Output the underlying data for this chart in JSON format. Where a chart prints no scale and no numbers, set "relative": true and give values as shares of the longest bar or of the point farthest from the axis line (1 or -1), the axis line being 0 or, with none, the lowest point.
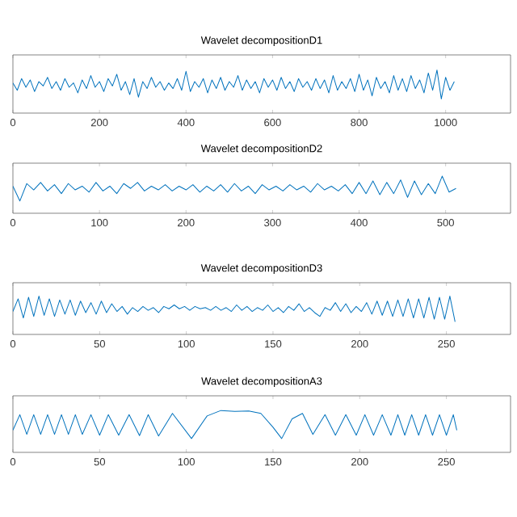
{
  "chart_data": [
    {
      "type": "line",
      "title": "Wavelet decompositionD1",
      "relative": true,
      "color": "#0072bd",
      "xlim": [
        0,
        1150
      ],
      "xticks": [
        0,
        200,
        400,
        600,
        800,
        1000
      ],
      "x": [
        0,
        10,
        20,
        30,
        40,
        50,
        60,
        70,
        80,
        90,
        100,
        110,
        120,
        130,
        140,
        150,
        160,
        170,
        180,
        190,
        200,
        210,
        220,
        230,
        240,
        250,
        260,
        270,
        280,
        290,
        300,
        310,
        320,
        330,
        340,
        350,
        360,
        370,
        380,
        390,
        400,
        410,
        420,
        430,
        440,
        450,
        460,
        470,
        480,
        490,
        500,
        510,
        520,
        530,
        540,
        550,
        560,
        570,
        580,
        590,
        600,
        610,
        620,
        630,
        640,
        650,
        660,
        670,
        680,
        690,
        700,
        710,
        720,
        730,
        740,
        750,
        760,
        770,
        780,
        790,
        800,
        810,
        820,
        830,
        840,
        850,
        860,
        870,
        880,
        890,
        900,
        910,
        920,
        930,
        940,
        950,
        960,
        970,
        980,
        990,
        1000,
        1010,
        1020
      ],
      "values": [
        0.7,
        0.53,
        0.8,
        0.6,
        0.77,
        0.5,
        0.73,
        0.63,
        0.83,
        0.57,
        0.73,
        0.53,
        0.8,
        0.6,
        0.7,
        0.47,
        0.77,
        0.57,
        0.87,
        0.6,
        0.73,
        0.5,
        0.8,
        0.63,
        0.9,
        0.53,
        0.73,
        0.43,
        0.8,
        0.37,
        0.73,
        0.57,
        0.83,
        0.6,
        0.73,
        0.53,
        0.7,
        0.57,
        0.8,
        0.53,
        0.97,
        0.5,
        0.73,
        0.6,
        0.8,
        0.47,
        0.77,
        0.57,
        0.83,
        0.53,
        0.73,
        0.6,
        0.87,
        0.53,
        0.77,
        0.57,
        0.73,
        0.47,
        0.8,
        0.6,
        0.77,
        0.53,
        0.83,
        0.57,
        0.73,
        0.5,
        0.8,
        0.6,
        0.73,
        0.53,
        0.8,
        0.57,
        0.77,
        0.47,
        0.87,
        0.53,
        0.73,
        0.57,
        0.8,
        0.5,
        0.9,
        0.53,
        0.77,
        0.4,
        0.83,
        0.57,
        0.73,
        0.47,
        0.87,
        0.53,
        0.8,
        0.5,
        0.87,
        0.57,
        0.77,
        0.47,
        0.93,
        0.53,
        1.0,
        0.33,
        0.83,
        0.53,
        0.73
      ]
    },
    {
      "type": "line",
      "title": "Wavelet decompositionD2",
      "relative": true,
      "color": "#0072bd",
      "xlim": [
        0,
        575
      ],
      "xticks": [
        0,
        100,
        200,
        300,
        400,
        500
      ],
      "x": [
        0,
        8,
        16,
        24,
        32,
        40,
        48,
        56,
        64,
        72,
        80,
        88,
        96,
        104,
        112,
        120,
        128,
        136,
        144,
        152,
        160,
        168,
        176,
        184,
        192,
        200,
        208,
        216,
        224,
        232,
        240,
        248,
        256,
        264,
        272,
        280,
        288,
        296,
        304,
        312,
        320,
        328,
        336,
        344,
        352,
        360,
        368,
        376,
        384,
        392,
        400,
        408,
        416,
        424,
        432,
        440,
        448,
        456,
        464,
        472,
        480,
        488,
        496,
        504,
        512
      ],
      "values": [
        0.73,
        0.33,
        0.8,
        0.63,
        0.83,
        0.6,
        0.77,
        0.53,
        0.8,
        0.63,
        0.73,
        0.57,
        0.83,
        0.6,
        0.73,
        0.53,
        0.8,
        0.67,
        0.83,
        0.6,
        0.73,
        0.63,
        0.77,
        0.6,
        0.73,
        0.63,
        0.77,
        0.57,
        0.73,
        0.6,
        0.77,
        0.57,
        0.8,
        0.6,
        0.73,
        0.53,
        0.77,
        0.63,
        0.73,
        0.6,
        0.77,
        0.63,
        0.73,
        0.57,
        0.8,
        0.63,
        0.73,
        0.6,
        0.77,
        0.53,
        0.83,
        0.53,
        0.87,
        0.5,
        0.83,
        0.53,
        0.9,
        0.43,
        0.87,
        0.5,
        0.8,
        0.53,
        1.0,
        0.57,
        0.67
      ]
    },
    {
      "type": "line",
      "title": "Wavelet decompositionD3",
      "relative": true,
      "color": "#0072bd",
      "xlim": [
        0,
        287
      ],
      "xticks": [
        0,
        50,
        100,
        150,
        200,
        250
      ],
      "x": [
        0,
        3,
        6,
        9,
        12,
        15,
        18,
        21,
        24,
        27,
        30,
        33,
        36,
        39,
        42,
        45,
        48,
        51,
        54,
        57,
        60,
        63,
        66,
        69,
        72,
        75,
        78,
        81,
        84,
        87,
        90,
        93,
        96,
        99,
        102,
        105,
        108,
        111,
        114,
        117,
        120,
        123,
        126,
        129,
        132,
        135,
        138,
        141,
        144,
        147,
        150,
        153,
        156,
        159,
        162,
        165,
        168,
        171,
        174,
        177,
        180,
        183,
        186,
        189,
        192,
        195,
        198,
        201,
        204,
        207,
        210,
        213,
        216,
        219,
        222,
        225,
        228,
        231,
        234,
        237,
        240,
        243,
        246,
        249,
        252,
        255
      ],
      "values": [
        0.6,
        0.93,
        0.43,
        0.97,
        0.47,
        1.0,
        0.5,
        0.93,
        0.47,
        0.9,
        0.53,
        0.9,
        0.5,
        0.87,
        0.57,
        0.83,
        0.53,
        0.87,
        0.57,
        0.8,
        0.6,
        0.73,
        0.53,
        0.7,
        0.6,
        0.73,
        0.63,
        0.7,
        0.57,
        0.73,
        0.67,
        0.77,
        0.67,
        0.73,
        0.63,
        0.73,
        0.67,
        0.7,
        0.63,
        0.73,
        0.63,
        0.7,
        0.6,
        0.77,
        0.63,
        0.73,
        0.6,
        0.7,
        0.63,
        0.77,
        0.6,
        0.7,
        0.57,
        0.73,
        0.63,
        0.8,
        0.6,
        0.7,
        0.57,
        0.47,
        0.7,
        0.63,
        0.83,
        0.6,
        0.8,
        0.57,
        0.73,
        0.6,
        0.83,
        0.53,
        0.87,
        0.5,
        0.87,
        0.47,
        0.9,
        0.47,
        0.93,
        0.43,
        0.93,
        0.43,
        0.97,
        0.4,
        0.97,
        0.4,
        1.0,
        0.33
      ]
    },
    {
      "type": "line",
      "title": "Wavelet decompositionA3",
      "relative": true,
      "color": "#0072bd",
      "xlim": [
        0,
        287
      ],
      "xticks": [
        0,
        50,
        100,
        150,
        200,
        250
      ],
      "x": [
        0,
        4,
        8,
        12,
        16,
        20,
        24,
        28,
        32,
        36,
        40,
        45,
        50,
        55,
        61,
        67,
        73,
        78,
        84,
        92,
        103,
        112,
        120,
        128,
        136,
        143,
        150,
        155,
        161,
        167,
        173,
        180,
        186,
        192,
        198,
        203,
        208,
        213,
        218,
        222,
        226,
        230,
        234,
        238,
        242,
        246,
        250,
        254,
        256
      ],
      "values": [
        0.53,
        0.9,
        0.43,
        0.9,
        0.43,
        0.9,
        0.43,
        0.9,
        0.43,
        0.9,
        0.43,
        0.9,
        0.41,
        0.9,
        0.41,
        0.9,
        0.4,
        0.9,
        0.39,
        0.93,
        0.33,
        0.87,
        1.0,
        0.98,
        0.99,
        0.93,
        0.6,
        0.33,
        0.8,
        0.93,
        0.43,
        0.9,
        0.41,
        0.9,
        0.41,
        0.9,
        0.41,
        0.9,
        0.41,
        0.9,
        0.41,
        0.9,
        0.41,
        0.9,
        0.41,
        0.9,
        0.41,
        0.9,
        0.53
      ]
    }
  ]
}
